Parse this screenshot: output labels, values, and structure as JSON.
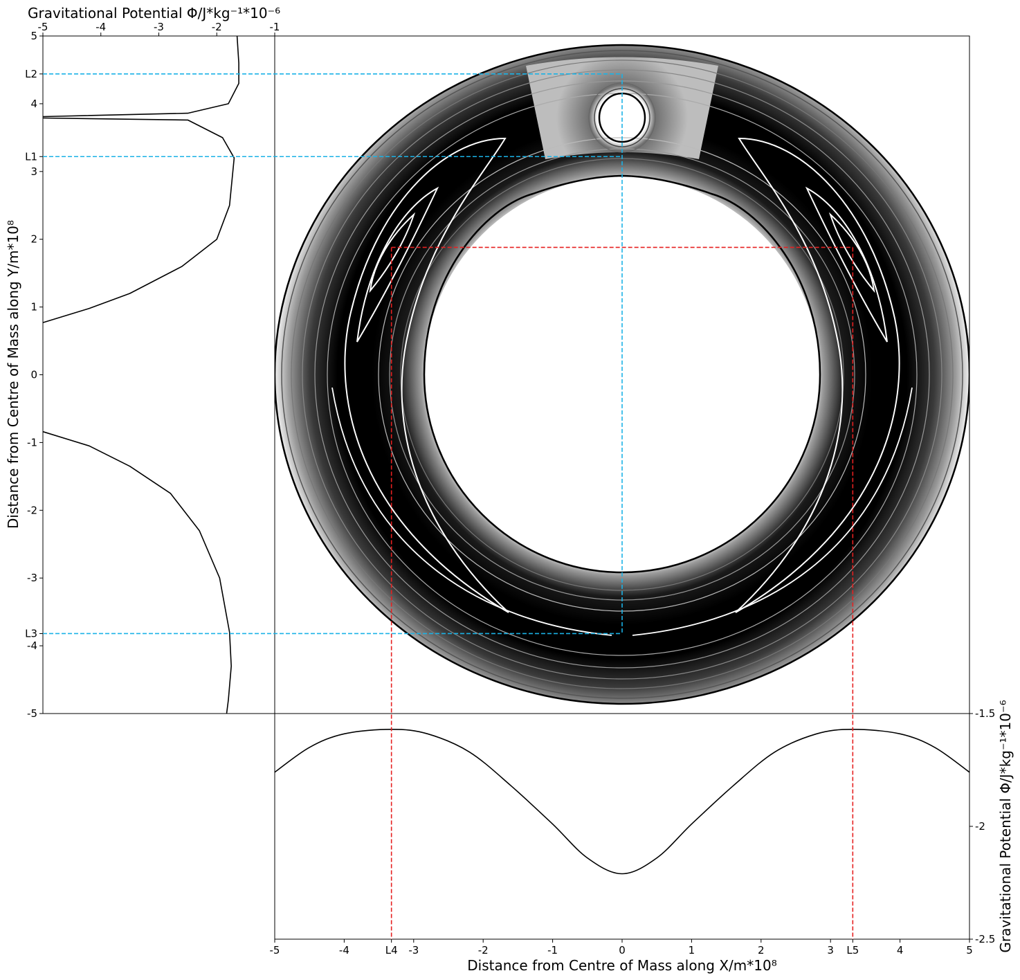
{
  "chart_data": [
    {
      "type": "line",
      "title": "",
      "xlabel": "Gravitational Potential Φ/J*kg⁻¹*10⁻⁶",
      "ylabel": "Distance from Centre of Mass along Y/m*10⁸",
      "xlim": [
        -5,
        -1
      ],
      "ylim": [
        -5,
        5
      ],
      "xticks": [
        "-5",
        "-4",
        "-3",
        "-2",
        "-1"
      ],
      "yticks": [
        "5",
        "4",
        "3",
        "2",
        "1",
        "0",
        "-1",
        "-2",
        "-3",
        "-4",
        "-5"
      ],
      "special_ticks": [
        {
          "label": "L2",
          "y": 4.44
        },
        {
          "label": "L1",
          "y": 3.22
        },
        {
          "label": "L3",
          "y": -3.82
        }
      ],
      "series": [
        {
          "values": [
            [
              -1.65,
              5.0
            ],
            [
              -1.62,
              4.6
            ],
            [
              -1.62,
              4.3
            ],
            [
              -1.8,
              4.0
            ],
            [
              -2.5,
              3.86
            ],
            [
              -5.0,
              3.81
            ]
          ]
        },
        {
          "values": [
            [
              -5.0,
              3.79
            ],
            [
              -2.5,
              3.76
            ],
            [
              -1.9,
              3.5
            ],
            [
              -1.7,
              3.2
            ],
            [
              -1.78,
              2.5
            ],
            [
              -2.0,
              2.0
            ],
            [
              -2.6,
              1.6
            ],
            [
              -3.5,
              1.2
            ],
            [
              -4.2,
              0.98
            ],
            [
              -5.0,
              0.77
            ]
          ]
        },
        {
          "values": [
            [
              -5.0,
              -0.84
            ],
            [
              -4.2,
              -1.05
            ],
            [
              -3.5,
              -1.35
            ],
            [
              -2.8,
              -1.75
            ],
            [
              -2.3,
              -2.3
            ],
            [
              -1.95,
              -3.0
            ],
            [
              -1.78,
              -3.8
            ],
            [
              -1.75,
              -4.3
            ],
            [
              -1.8,
              -4.8
            ],
            [
              -1.83,
              -5.0
            ]
          ]
        }
      ]
    },
    {
      "type": "line",
      "title": "",
      "xlabel": "Distance from Centre of Mass along X/m*10⁸",
      "ylabel": "Gravitational Potential Φ/J*kg⁻¹*10⁻⁶",
      "xlim": [
        -5,
        5
      ],
      "ylim": [
        -2.5,
        -1.5
      ],
      "xticks": [
        "-5",
        "-4",
        "-3",
        "-2",
        "-1",
        "0",
        "1",
        "2",
        "3",
        "4",
        "5"
      ],
      "yticks": [
        "-1.5",
        "-2",
        "-2.5"
      ],
      "special_ticks": [
        {
          "label": "L4",
          "x": -3.32
        },
        {
          "label": "L5",
          "x": 3.32
        }
      ],
      "series": [
        {
          "values": [
            [
              -5.0,
              -1.76
            ],
            [
              -4.5,
              -1.65
            ],
            [
              -4.0,
              -1.59
            ],
            [
              -3.32,
              -1.57
            ],
            [
              -2.8,
              -1.59
            ],
            [
              -2.2,
              -1.67
            ],
            [
              -1.6,
              -1.82
            ],
            [
              -1.0,
              -1.99
            ],
            [
              -0.5,
              -2.14
            ],
            [
              0.0,
              -2.21
            ],
            [
              0.5,
              -2.14
            ],
            [
              1.0,
              -1.99
            ],
            [
              1.6,
              -1.82
            ],
            [
              2.2,
              -1.67
            ],
            [
              2.8,
              -1.59
            ],
            [
              3.32,
              -1.57
            ],
            [
              4.0,
              -1.59
            ],
            [
              4.5,
              -1.65
            ],
            [
              5.0,
              -1.76
            ]
          ]
        }
      ]
    },
    {
      "type": "heatmap",
      "title": "",
      "xlim": [
        -5,
        5
      ],
      "ylim": [
        -5,
        5
      ],
      "lagrange_points": [
        {
          "label": "L1",
          "x": 0.0,
          "y": 3.22
        },
        {
          "label": "L2",
          "x": 0.0,
          "y": 4.44
        },
        {
          "label": "L3",
          "x": 0.0,
          "y": -3.82
        },
        {
          "label": "L4",
          "x": -3.32,
          "y": 1.88
        },
        {
          "label": "L5",
          "x": 3.32,
          "y": 1.88
        }
      ],
      "colors": {
        "guide_blue": "#1ab2e6",
        "guide_red": "#e62020",
        "fill": "#000000"
      }
    }
  ]
}
